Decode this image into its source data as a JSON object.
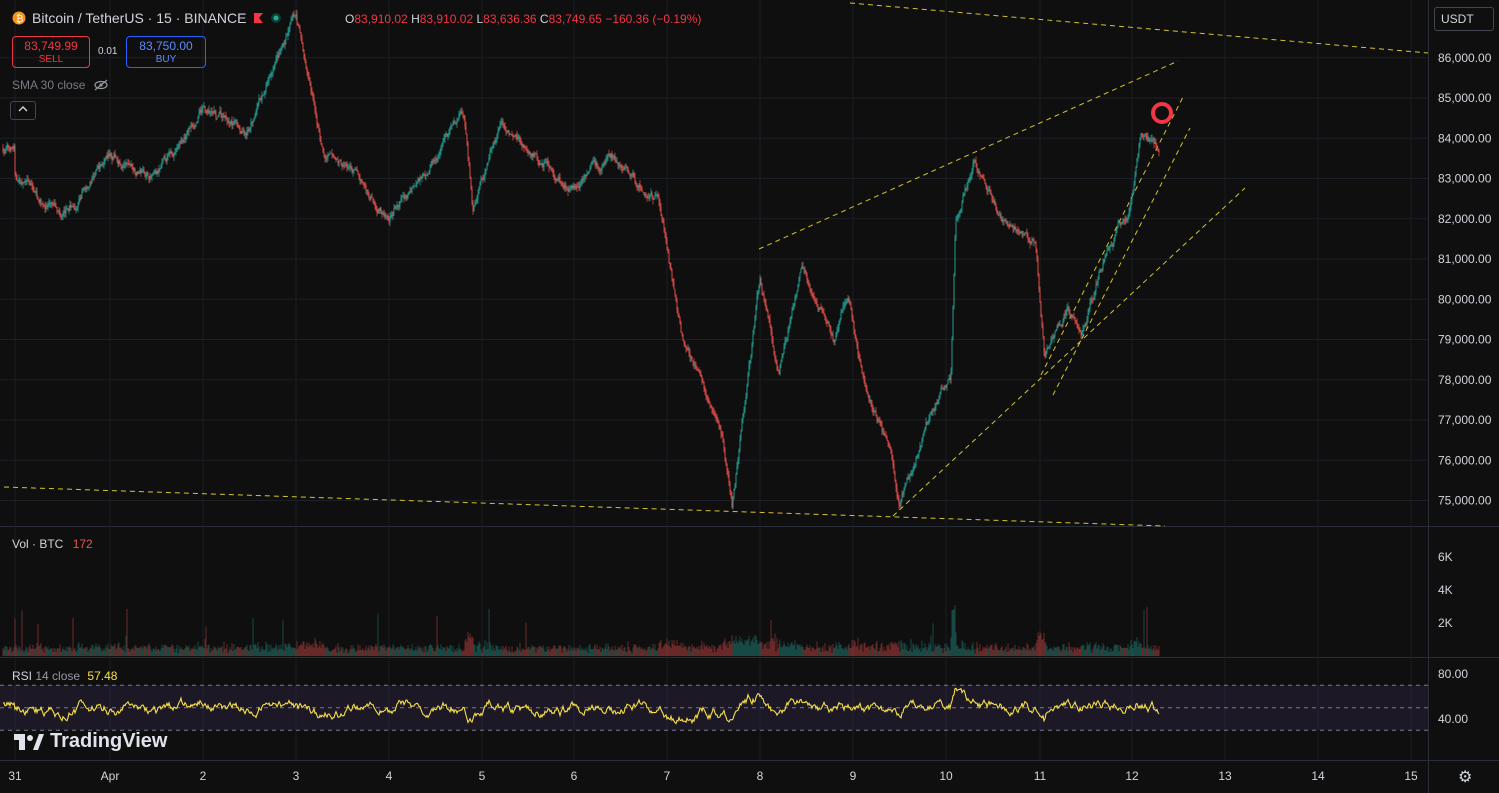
{
  "header": {
    "symbol": "Bitcoin / TetherUS · 15 · BINANCE",
    "open_label": "O",
    "open": "83,910.02",
    "high_label": "H",
    "high": "83,910.02",
    "low_label": "L",
    "low": "83,636.36",
    "close_label": "C",
    "close": "83,749.65",
    "change": "−160.36 (−0.19%)"
  },
  "trade": {
    "sell_price": "83,749.99",
    "sell_label": "SELL",
    "spread": "0.01",
    "buy_price": "83,750.00",
    "buy_label": "BUY"
  },
  "indicator_label": "SMA 30 close",
  "currency": "USDT",
  "volume_pane": {
    "label": "Vol · BTC",
    "value": "172"
  },
  "rsi_pane": {
    "label": "RSI",
    "params": "14 close",
    "value": "57.48"
  },
  "branding": "TradingView",
  "colors": {
    "up": "#26a69a",
    "down": "#ef5350",
    "rsi": "#f7e04b",
    "trend": "#d4c430",
    "marker": "#f23645"
  },
  "chart_data": [
    {
      "type": "candlestick",
      "symbol": "BTCUSDT",
      "interval": "15",
      "y_axis": {
        "ticks": [
          75000,
          76000,
          77000,
          78000,
          79000,
          80000,
          81000,
          82000,
          83000,
          84000,
          85000,
          86000
        ],
        "tick_labels": [
          "75,000.00",
          "76,000.00",
          "77,000.00",
          "78,000.00",
          "79,000.00",
          "80,000.00",
          "81,000.00",
          "82,000.00",
          "83,000.00",
          "84,000.00",
          "85,000.00",
          "86,000.00"
        ]
      },
      "x_axis": {
        "ticks": [
          "31",
          "Apr",
          "2",
          "3",
          "4",
          "5",
          "6",
          "7",
          "8",
          "9",
          "10",
          "11",
          "12",
          "13",
          "14",
          "15"
        ]
      },
      "approx_path": [
        {
          "x": "31",
          "price": 83000
        },
        {
          "x": "31.5",
          "price": 82000
        },
        {
          "x": "Apr",
          "price": 83600
        },
        {
          "x": "1.5",
          "price": 83000
        },
        {
          "x": "2",
          "price": 84700
        },
        {
          "x": "2.5",
          "price": 84200
        },
        {
          "x": "3",
          "price": 87000
        },
        {
          "x": "3.3",
          "price": 83500
        },
        {
          "x": "3.6",
          "price": 83200
        },
        {
          "x": "4",
          "price": 82000
        },
        {
          "x": "4.4",
          "price": 83200
        },
        {
          "x": "4.8",
          "price": 84600
        },
        {
          "x": "4.9",
          "price": 82200
        },
        {
          "x": "5.2",
          "price": 84300
        },
        {
          "x": "5.6",
          "price": 83500
        },
        {
          "x": "6",
          "price": 82700
        },
        {
          "x": "6.4",
          "price": 83500
        },
        {
          "x": "6.9",
          "price": 82500
        },
        {
          "x": "7.15",
          "price": 79200
        },
        {
          "x": "7.6",
          "price": 76500
        },
        {
          "x": "7.7",
          "price": 74800
        },
        {
          "x": "8",
          "price": 80500
        },
        {
          "x": "8.2",
          "price": 78200
        },
        {
          "x": "8.45",
          "price": 80800
        },
        {
          "x": "8.8",
          "price": 79000
        },
        {
          "x": "8.95",
          "price": 80200
        },
        {
          "x": "9.1",
          "price": 78000
        },
        {
          "x": "9.4",
          "price": 76200
        },
        {
          "x": "9.5",
          "price": 74800
        },
        {
          "x": "9.85",
          "price": 77300
        },
        {
          "x": "10.05",
          "price": 78000
        },
        {
          "x": "10.1",
          "price": 82000
        },
        {
          "x": "10.3",
          "price": 83500
        },
        {
          "x": "10.6",
          "price": 82000
        },
        {
          "x": "10.95",
          "price": 81500
        },
        {
          "x": "11.05",
          "price": 78600
        },
        {
          "x": "11.3",
          "price": 79800
        },
        {
          "x": "11.45",
          "price": 79000
        },
        {
          "x": "11.7",
          "price": 81000
        },
        {
          "x": "11.95",
          "price": 82000
        },
        {
          "x": "12.1",
          "price": 84000
        },
        {
          "x": "12.3",
          "price": 83750
        }
      ],
      "last_price": 83749.65
    },
    {
      "type": "bar",
      "title": "Vol · BTC",
      "y_axis": {
        "ticks": [
          2000,
          4000,
          6000
        ],
        "tick_labels": [
          "2K",
          "4K",
          "6K"
        ]
      },
      "last_value": 172
    },
    {
      "type": "line",
      "title": "RSI 14 close",
      "y_axis": {
        "ticks": [
          40,
          80
        ],
        "tick_labels": [
          "40.00",
          "80.00"
        ]
      },
      "bands": [
        30,
        50,
        70
      ],
      "last_value": 57.48
    }
  ]
}
